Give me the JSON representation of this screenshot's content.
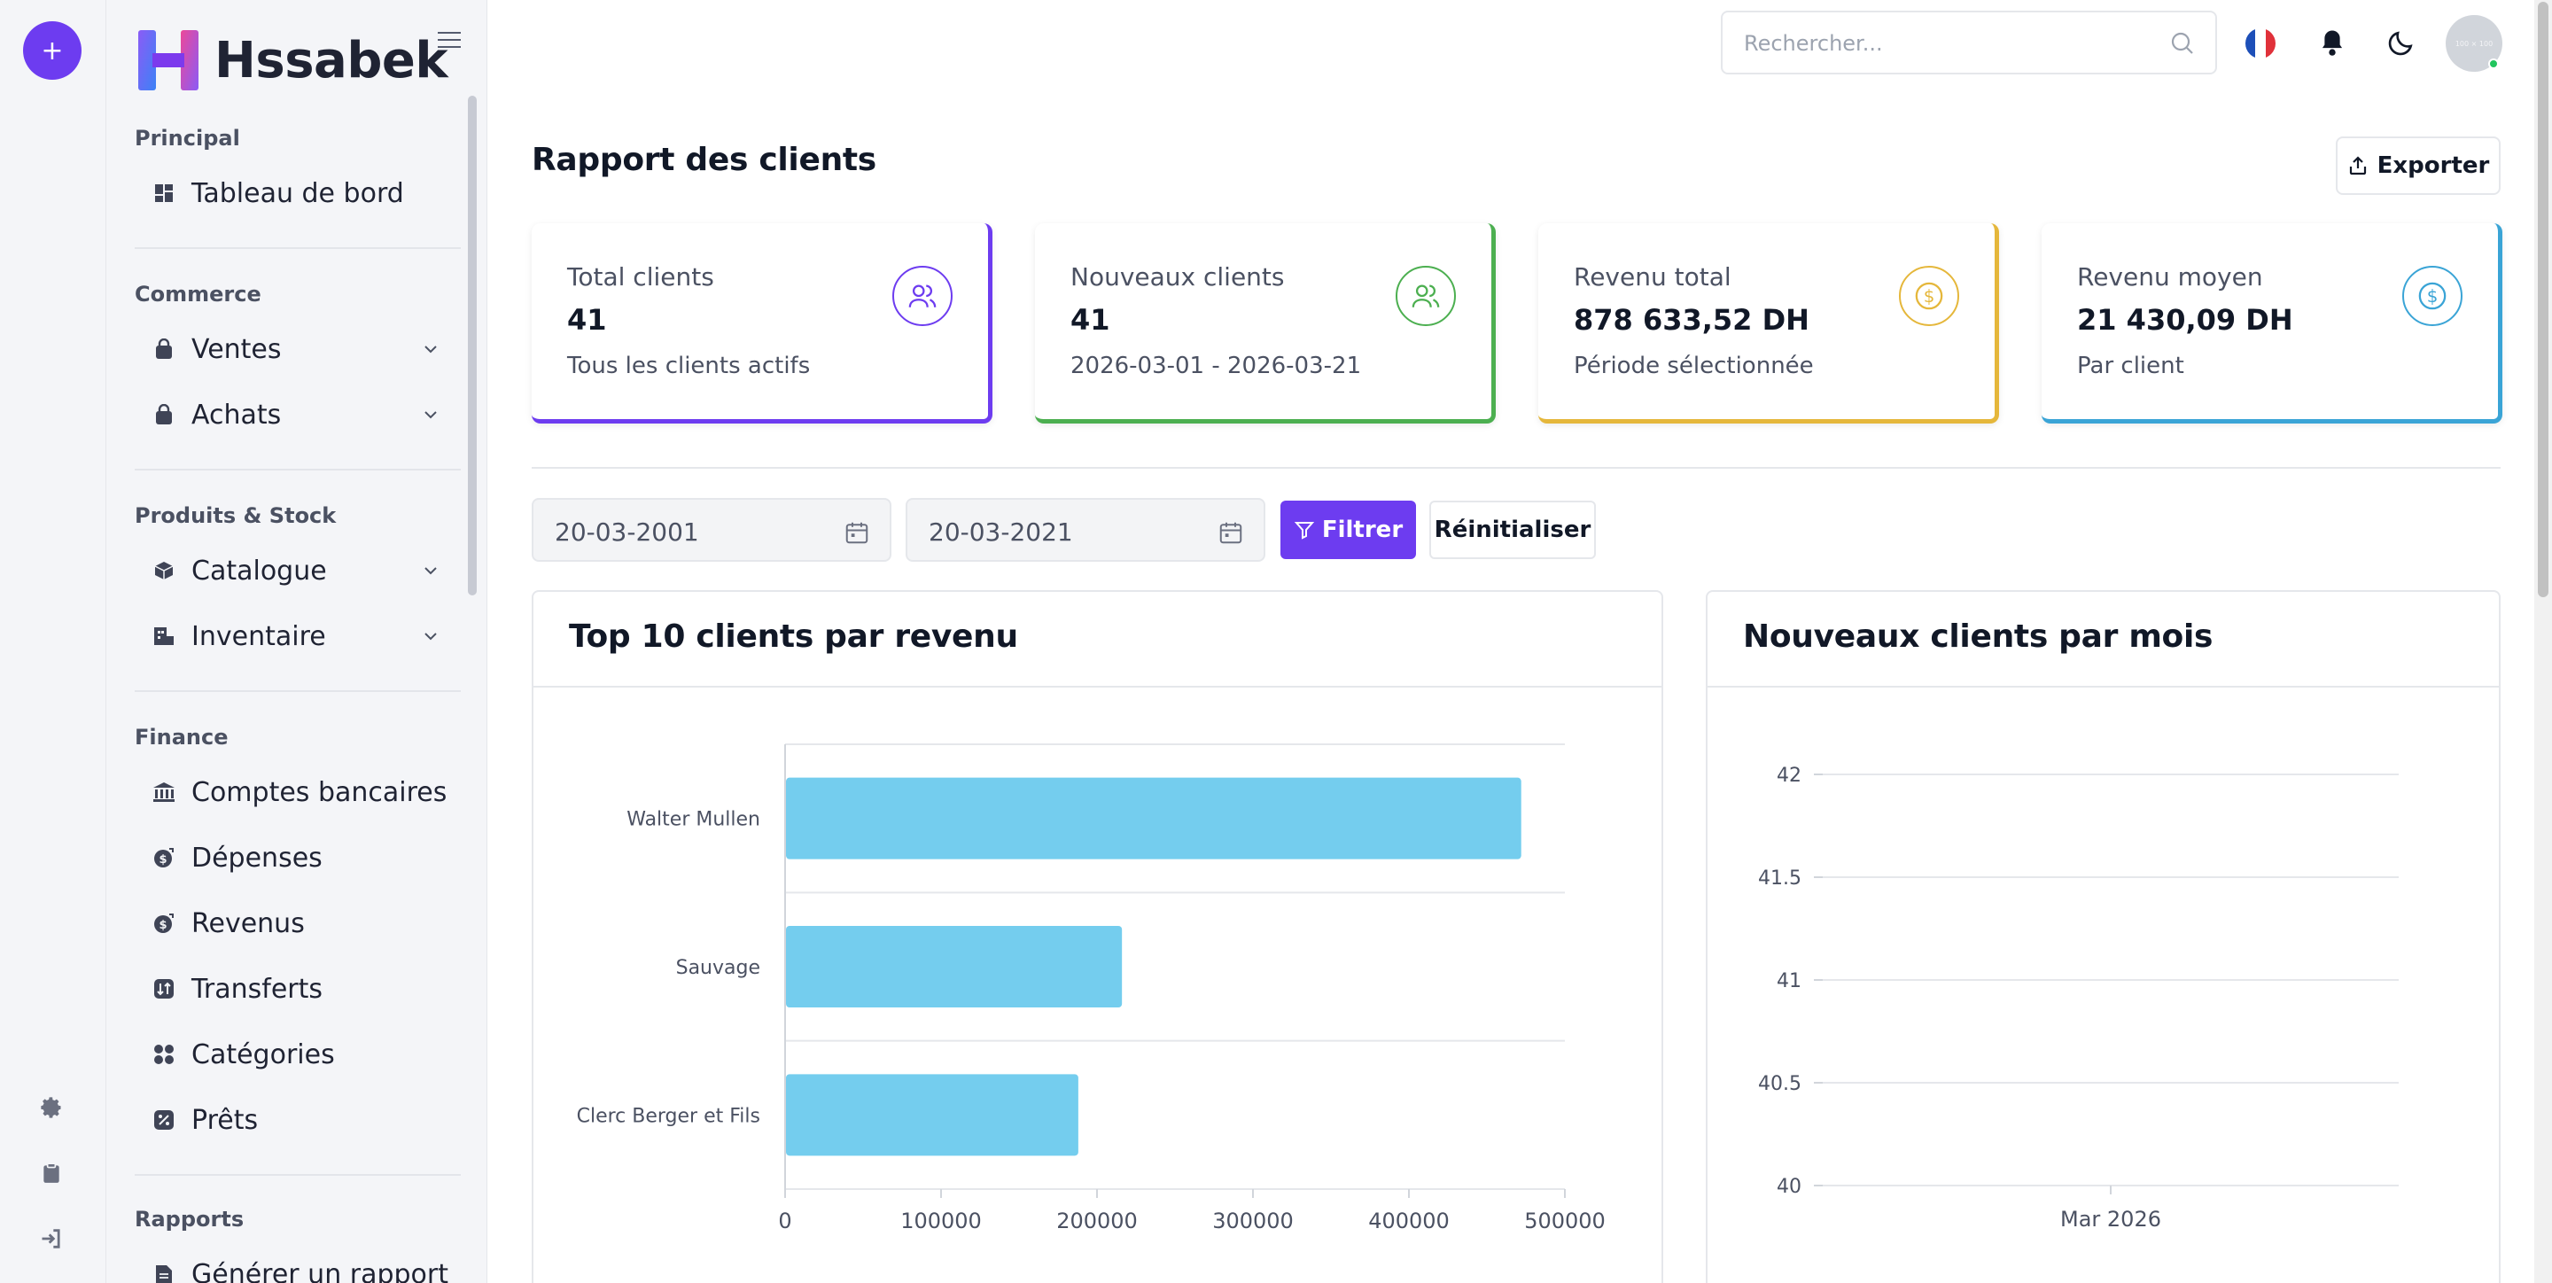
{
  "brand": {
    "name": "Hssabek"
  },
  "sidebar": {
    "sections": [
      {
        "title": "Principal",
        "items": [
          {
            "label": "Tableau de bord",
            "icon": "dashboard-icon"
          }
        ]
      },
      {
        "title": "Commerce",
        "items": [
          {
            "label": "Ventes",
            "icon": "shopping-bag-icon"
          },
          {
            "label": "Achats",
            "icon": "bag-icon"
          }
        ]
      },
      {
        "title": "Produits & Stock",
        "items": [
          {
            "label": "Catalogue",
            "icon": "box-icon"
          },
          {
            "label": "Inventaire",
            "icon": "warehouse-icon"
          }
        ]
      },
      {
        "title": "Finance",
        "items": [
          {
            "label": "Comptes bancaires",
            "icon": "bank-icon"
          },
          {
            "label": "Dépenses",
            "icon": "expense-icon"
          },
          {
            "label": "Revenus",
            "icon": "income-icon"
          },
          {
            "label": "Transferts",
            "icon": "transfer-icon"
          },
          {
            "label": "Catégories",
            "icon": "categories-icon"
          },
          {
            "label": "Prêts",
            "icon": "loan-icon"
          }
        ]
      },
      {
        "title": "Rapports",
        "items": [
          {
            "label": "Générer un rapport",
            "icon": "report-icon"
          }
        ]
      }
    ]
  },
  "header": {
    "search_placeholder": "Rechercher...",
    "avatar_text": "100 × 100"
  },
  "main": {
    "title": "Rapport des clients",
    "export_label": "Exporter",
    "stats": [
      {
        "label": "Total clients",
        "value": "41",
        "sub": "Tous les clients actifs",
        "color": "#6d3cf0",
        "icon": "users-icon"
      },
      {
        "label": "Nouveaux clients",
        "value": "41",
        "sub": "2026-03-01 - 2026-03-21",
        "color": "#4caf50",
        "icon": "users-icon"
      },
      {
        "label": "Revenu total",
        "value": "878 633,52 DH",
        "sub": "Période sélectionnée",
        "color": "#e5b73b",
        "icon": "dollar-icon"
      },
      {
        "label": "Revenu moyen",
        "value": "21 430,09 DH",
        "sub": "Par client",
        "color": "#3aa4d6",
        "icon": "dollar-icon"
      }
    ],
    "filters": {
      "date_from": "20-03-2001",
      "date_to": "20-03-2021",
      "filter_label": "Filtrer",
      "reset_label": "Réinitialiser"
    },
    "top_clients_title": "Top 10 clients par revenu",
    "new_clients_title": "Nouveaux clients par mois"
  },
  "chart_data": [
    {
      "type": "bar",
      "orientation": "horizontal",
      "title": "Top 10 clients par revenu",
      "categories": [
        "Walter Mullen",
        "Sauvage",
        "Clerc Berger et Fils"
      ],
      "values": [
        472000,
        216000,
        188000
      ],
      "xlim": [
        0,
        500000
      ],
      "xticks": [
        "0",
        "100000",
        "200000",
        "300000",
        "400000",
        "500000"
      ],
      "color": "#74cdee",
      "grid": true
    },
    {
      "type": "line",
      "title": "Nouveaux clients par mois",
      "categories": [
        "Mar 2026"
      ],
      "ylim": [
        40,
        42
      ],
      "yticks": [
        "42",
        "41.5",
        "41",
        "40.5",
        "40"
      ],
      "grid": true
    }
  ]
}
